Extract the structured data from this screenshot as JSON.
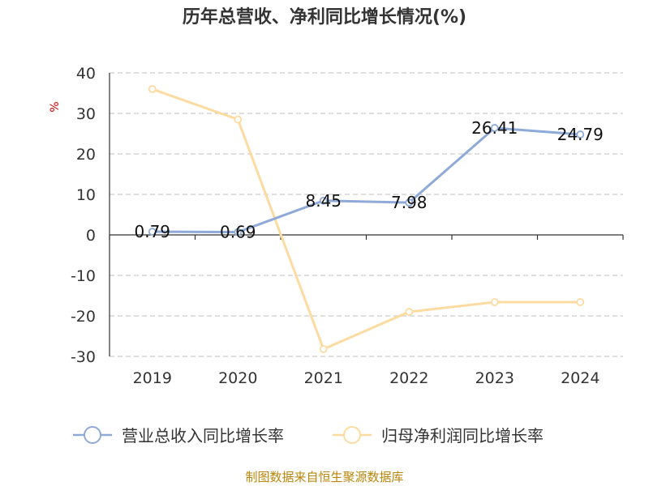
{
  "chart_data": {
    "type": "line",
    "title": "历年总营收、净利同比增长情况(%)",
    "ylabel": "%",
    "xlabel": "",
    "categories": [
      "2019",
      "2020",
      "2021",
      "2022",
      "2023",
      "2024"
    ],
    "ylim": [
      -30,
      40
    ],
    "yticks": [
      40,
      30,
      20,
      10,
      0,
      -10,
      -20,
      -30
    ],
    "grid": true,
    "legend_position": "bottom",
    "series": [
      {
        "name": "营业总收入同比增长率",
        "values": [
          0.79,
          0.69,
          8.45,
          7.98,
          26.41,
          24.79
        ],
        "labels": [
          "0.79",
          "0.69",
          "8.45",
          "7.98",
          "26.41",
          "24.79"
        ],
        "color": "#8faad9"
      },
      {
        "name": "归母净利润同比增长率",
        "values": [
          36.0,
          28.5,
          -28.2,
          -19.0,
          -16.6,
          -16.6
        ],
        "labels": [],
        "color": "#fcdba0"
      }
    ]
  },
  "footer": {
    "source": "制图数据来自恒生聚源数据库"
  }
}
